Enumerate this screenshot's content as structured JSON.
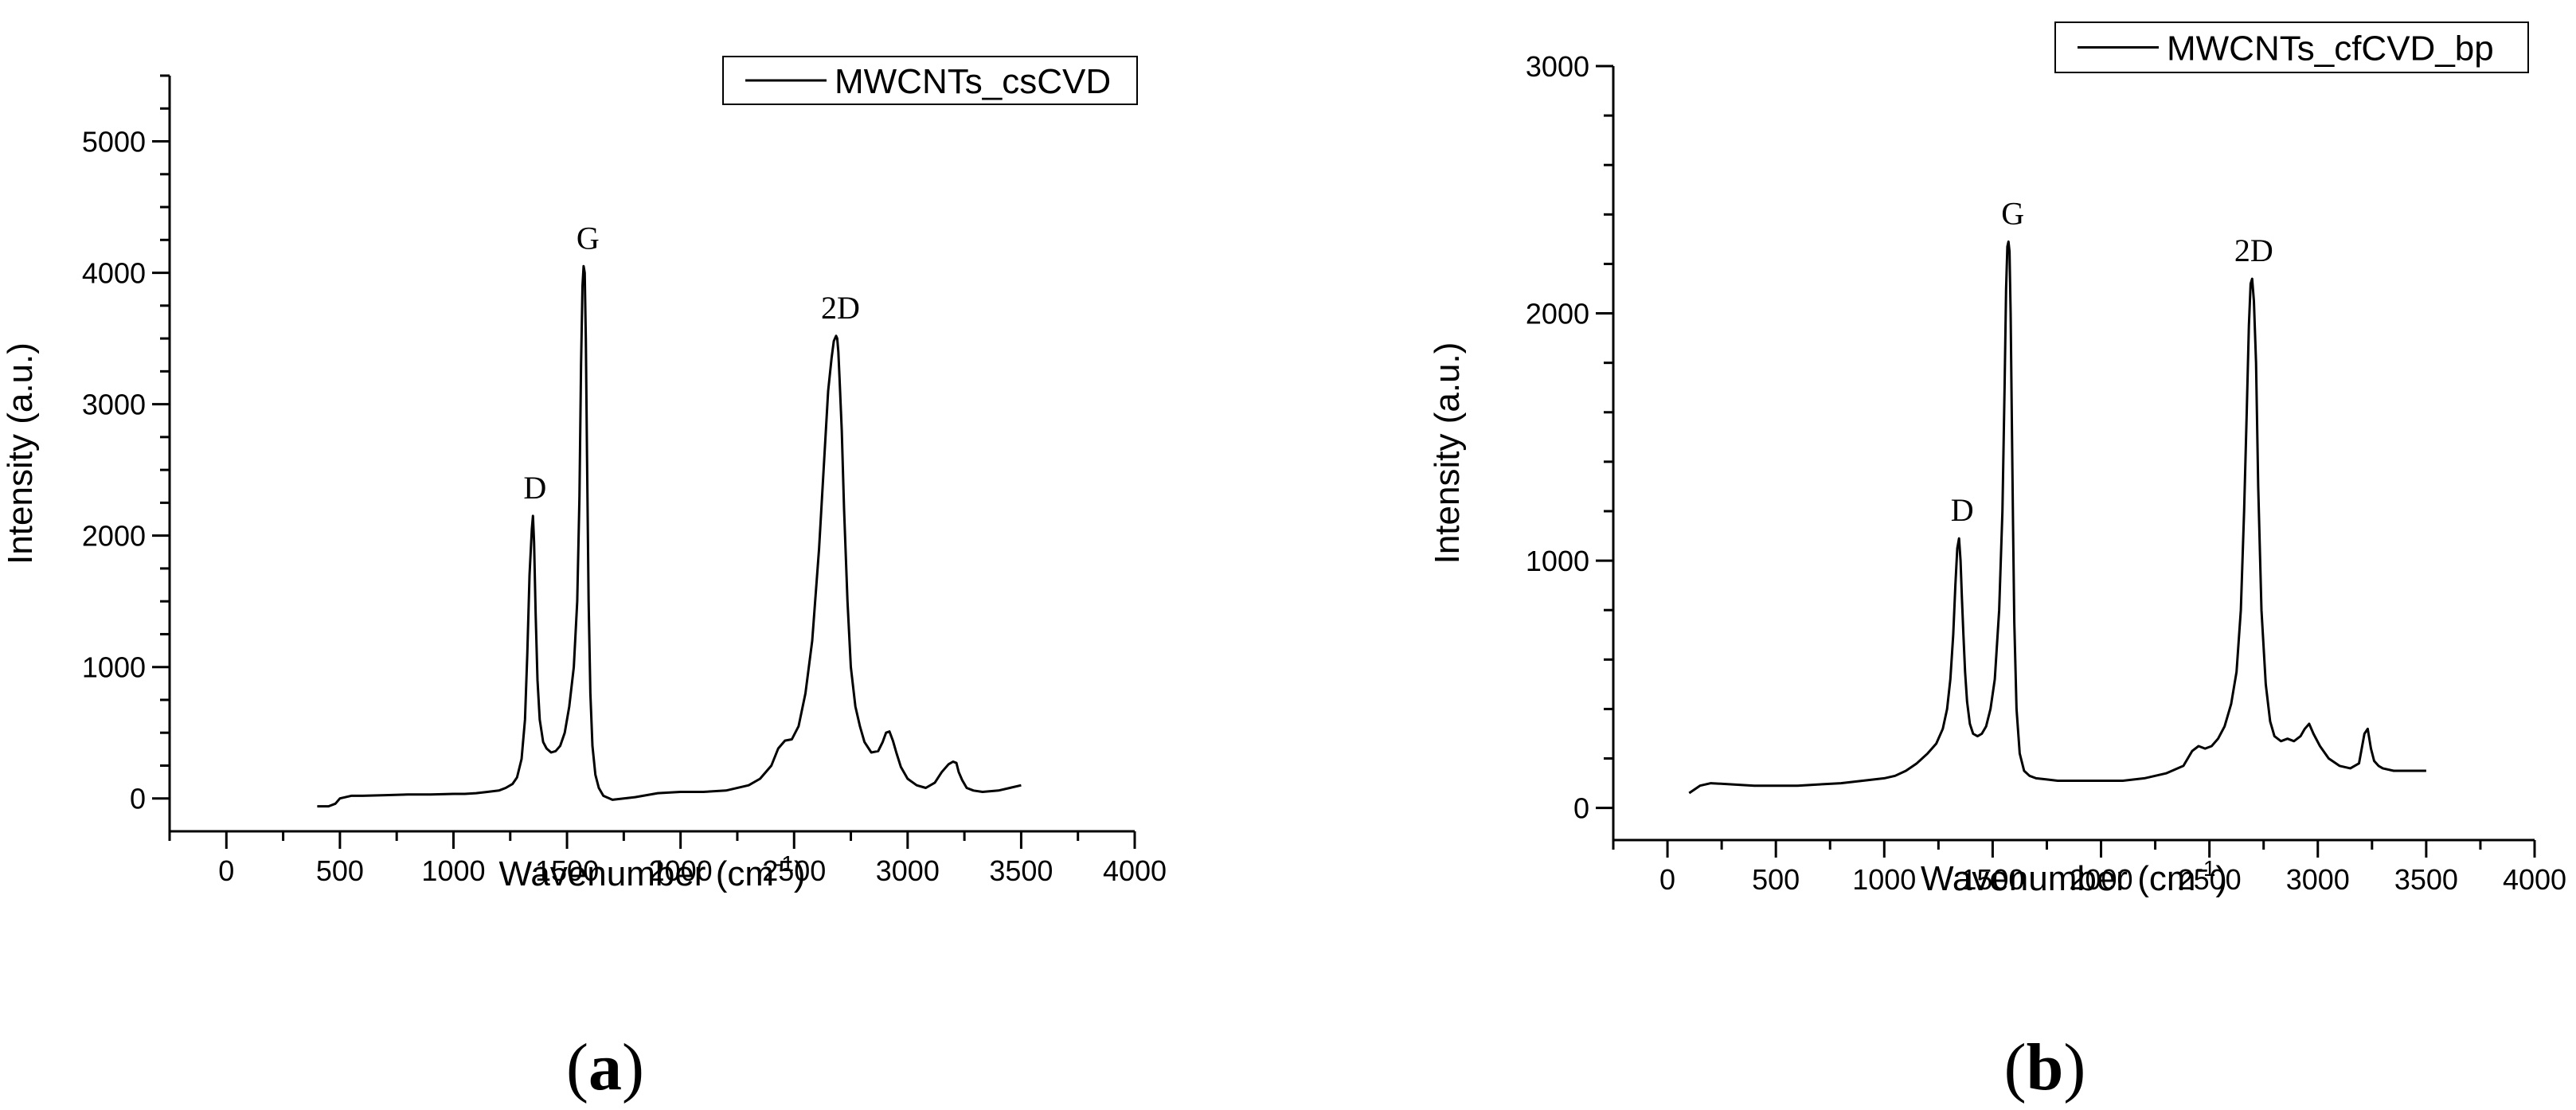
{
  "chart_data": [
    {
      "type": "line",
      "panel_label": "a",
      "xlabel": "Wavenumber (cm",
      "xlabel_sup": "-1",
      "xlabel_close": ")",
      "ylabel": "Intensity (a.u.)",
      "xlim": [
        -250,
        4000
      ],
      "ylim": [
        -250,
        5500
      ],
      "xticks": [
        0,
        500,
        1000,
        1500,
        2000,
        2500,
        3000,
        3500,
        4000
      ],
      "yticks": [
        0,
        1000,
        2000,
        3000,
        4000,
        5000
      ],
      "legend": "top-right",
      "grid": false,
      "series": [
        {
          "name": "MWCNTs_csCVD",
          "x": [
            400,
            450,
            480,
            500,
            550,
            600,
            700,
            800,
            900,
            1000,
            1050,
            1100,
            1150,
            1200,
            1230,
            1260,
            1280,
            1300,
            1315,
            1325,
            1335,
            1345,
            1350,
            1355,
            1362,
            1370,
            1380,
            1395,
            1410,
            1430,
            1450,
            1470,
            1490,
            1510,
            1530,
            1545,
            1555,
            1562,
            1568,
            1573,
            1578,
            1583,
            1588,
            1595,
            1603,
            1612,
            1625,
            1640,
            1660,
            1700,
            1750,
            1800,
            1900,
            2000,
            2100,
            2200,
            2300,
            2350,
            2400,
            2430,
            2460,
            2490,
            2520,
            2550,
            2580,
            2610,
            2630,
            2650,
            2665,
            2675,
            2685,
            2690,
            2695,
            2700,
            2710,
            2720,
            2735,
            2750,
            2770,
            2790,
            2810,
            2840,
            2870,
            2890,
            2905,
            2920,
            2935,
            2950,
            2970,
            3000,
            3040,
            3080,
            3120,
            3150,
            3180,
            3200,
            3215,
            3225,
            3240,
            3260,
            3290,
            3330,
            3400,
            3450,
            3500
          ],
          "values": [
            -60,
            -60,
            -40,
            0,
            20,
            20,
            25,
            30,
            30,
            35,
            35,
            40,
            50,
            60,
            80,
            110,
            160,
            300,
            600,
            1100,
            1700,
            2050,
            2150,
            1950,
            1400,
            900,
            600,
            430,
            380,
            350,
            360,
            400,
            500,
            700,
            1000,
            1500,
            2300,
            3300,
            3900,
            4050,
            4000,
            3500,
            2600,
            1500,
            800,
            400,
            180,
            80,
            20,
            -10,
            0,
            10,
            40,
            50,
            50,
            60,
            100,
            150,
            250,
            380,
            440,
            450,
            550,
            800,
            1200,
            1900,
            2500,
            3100,
            3350,
            3480,
            3520,
            3500,
            3400,
            3200,
            2800,
            2200,
            1500,
            1000,
            700,
            550,
            430,
            350,
            360,
            430,
            500,
            510,
            440,
            350,
            240,
            150,
            100,
            80,
            120,
            200,
            260,
            280,
            270,
            200,
            140,
            80,
            60,
            50,
            60,
            80,
            100
          ]
        }
      ],
      "annotations": [
        {
          "text": "D",
          "x": 1345,
          "y": 2150
        },
        {
          "text": "G",
          "x": 1578,
          "y": 4050
        },
        {
          "text": "2D",
          "x": 2690,
          "y": 3520
        }
      ]
    },
    {
      "type": "line",
      "panel_label": "b",
      "xlabel": "Wavenumber (cm",
      "xlabel_sup": "-1",
      "xlabel_close": ")",
      "ylabel": "Intensity (a.u.)",
      "xlim": [
        -250,
        4000
      ],
      "ylim": [
        -130,
        3000
      ],
      "xticks": [
        0,
        500,
        1000,
        1500,
        2000,
        2500,
        3000,
        3500,
        4000
      ],
      "yticks": [
        0,
        1000,
        2000,
        3000
      ],
      "legend": "top-right",
      "grid": false,
      "series": [
        {
          "name": "MWCNTs_cfCVD_bp",
          "x": [
            100,
            150,
            200,
            300,
            400,
            500,
            600,
            700,
            800,
            900,
            1000,
            1050,
            1100,
            1150,
            1200,
            1240,
            1270,
            1290,
            1305,
            1318,
            1328,
            1337,
            1345,
            1352,
            1358,
            1365,
            1373,
            1382,
            1395,
            1410,
            1430,
            1450,
            1470,
            1490,
            1510,
            1530,
            1545,
            1555,
            1562,
            1568,
            1573,
            1578,
            1583,
            1588,
            1594,
            1600,
            1610,
            1625,
            1645,
            1670,
            1700,
            1750,
            1800,
            1900,
            2000,
            2100,
            2200,
            2300,
            2380,
            2420,
            2450,
            2480,
            2510,
            2540,
            2570,
            2600,
            2625,
            2645,
            2660,
            2672,
            2682,
            2690,
            2697,
            2705,
            2715,
            2725,
            2740,
            2760,
            2780,
            2800,
            2830,
            2860,
            2890,
            2920,
            2940,
            2960,
            2980,
            3010,
            3050,
            3100,
            3150,
            3190,
            3215,
            3230,
            3245,
            3260,
            3280,
            3300,
            3350,
            3400,
            3450,
            3500
          ],
          "values": [
            60,
            90,
            100,
            95,
            90,
            90,
            90,
            95,
            100,
            110,
            120,
            130,
            150,
            180,
            220,
            260,
            320,
            400,
            520,
            700,
            900,
            1050,
            1090,
            1000,
            850,
            700,
            550,
            430,
            340,
            300,
            290,
            300,
            330,
            400,
            520,
            800,
            1200,
            1700,
            2100,
            2270,
            2290,
            2250,
            2000,
            1600,
            1150,
            750,
            400,
            220,
            150,
            130,
            120,
            115,
            110,
            110,
            110,
            110,
            120,
            140,
            170,
            230,
            250,
            240,
            250,
            280,
            330,
            420,
            550,
            800,
            1200,
            1600,
            1950,
            2120,
            2140,
            2050,
            1800,
            1300,
            800,
            500,
            350,
            290,
            270,
            280,
            270,
            290,
            320,
            340,
            300,
            250,
            200,
            170,
            160,
            180,
            300,
            320,
            240,
            190,
            170,
            160,
            150,
            150,
            150,
            150
          ]
        }
      ],
      "annotations": [
        {
          "text": "D",
          "x": 1345,
          "y": 1090
        },
        {
          "text": "G",
          "x": 1578,
          "y": 2290
        },
        {
          "text": "2D",
          "x": 2690,
          "y": 2140
        }
      ]
    }
  ]
}
